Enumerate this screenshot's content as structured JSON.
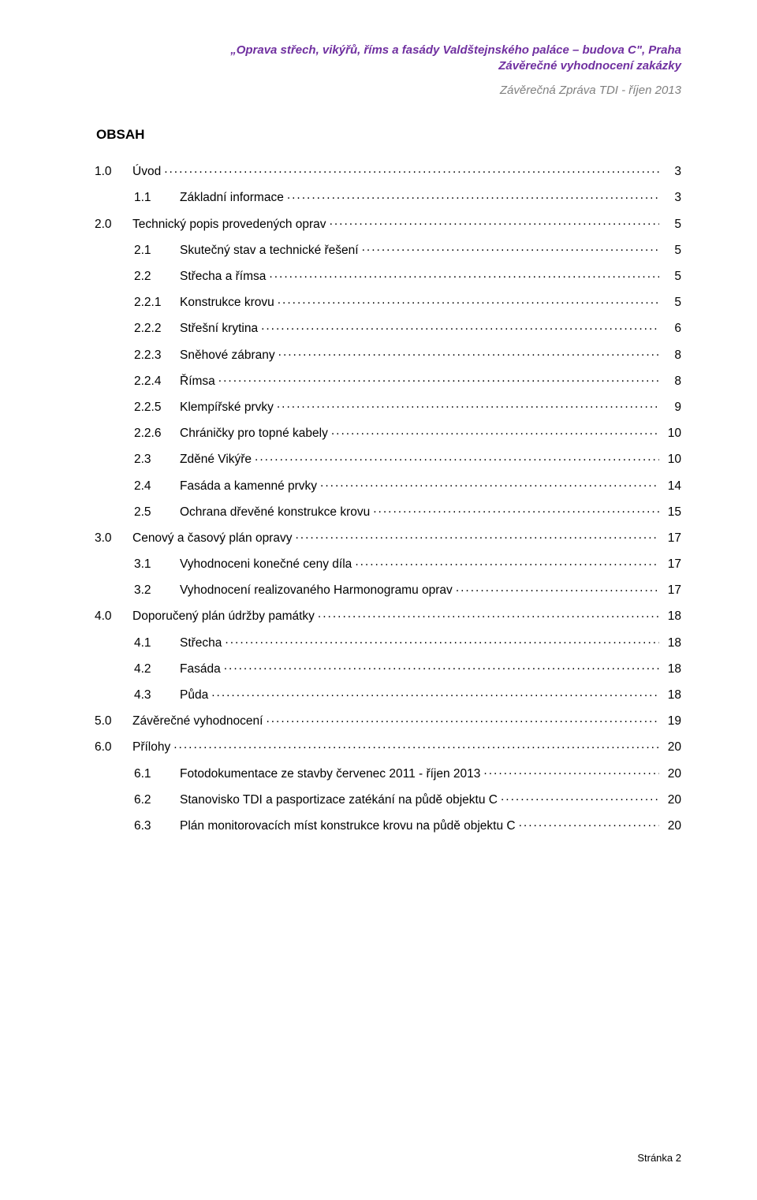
{
  "header": {
    "line1_italic_bold": "„Oprava střech, vikýřů, říms a fasády Valdštejnského paláce – budova C\", Praha",
    "line2_italic_bold": "Závěrečné vyhodnocení zakázky",
    "line3_gray_italic": "Závěrečná Zpráva TDI - říjen 2013"
  },
  "colors": {
    "purple": "#7030a0",
    "gray": "#808080",
    "text": "#000000",
    "background": "#ffffff"
  },
  "obsah_title": "OBSAH",
  "toc": [
    {
      "level": 1,
      "num": "1.0",
      "label": "Úvod",
      "page": "3"
    },
    {
      "level": 2,
      "num": "1.1",
      "label": "Základní informace",
      "page": "3"
    },
    {
      "level": 1,
      "num": "2.0",
      "label": "Technický popis provedených oprav",
      "page": "5"
    },
    {
      "level": 2,
      "num": "2.1",
      "label": "Skutečný stav a technické řešení",
      "page": "5"
    },
    {
      "level": 2,
      "num": "2.2",
      "label": "Střecha a římsa",
      "page": "5"
    },
    {
      "level": 2,
      "num": "2.2.1",
      "label": "Konstrukce krovu",
      "page": "5"
    },
    {
      "level": 2,
      "num": "2.2.2",
      "label": "Střešní krytina",
      "page": "6"
    },
    {
      "level": 2,
      "num": "2.2.3",
      "label": "Sněhové zábrany",
      "page": "8"
    },
    {
      "level": 2,
      "num": "2.2.4",
      "label": "Římsa",
      "page": "8"
    },
    {
      "level": 2,
      "num": "2.2.5",
      "label": "Klempířské prvky",
      "page": "9"
    },
    {
      "level": 2,
      "num": "2.2.6",
      "label": "Chráničky pro topné kabely",
      "page": "10"
    },
    {
      "level": 2,
      "num": "2.3",
      "label": "Zděné Vikýře",
      "page": "10"
    },
    {
      "level": 2,
      "num": "2.4",
      "label": "Fasáda a kamenné prvky",
      "page": "14"
    },
    {
      "level": 2,
      "num": "2.5",
      "label": "Ochrana dřevěné konstrukce krovu",
      "page": "15"
    },
    {
      "level": 1,
      "num": "3.0",
      "label": "Cenový a časový plán opravy",
      "page": "17"
    },
    {
      "level": 2,
      "num": "3.1",
      "label": "Vyhodnoceni konečné ceny díla",
      "page": "17"
    },
    {
      "level": 2,
      "num": "3.2",
      "label": "Vyhodnocení realizovaného Harmonogramu oprav",
      "page": "17"
    },
    {
      "level": 1,
      "num": "4.0",
      "label": "Doporučený plán údržby památky",
      "page": "18"
    },
    {
      "level": 2,
      "num": "4.1",
      "label": "Střecha",
      "page": "18"
    },
    {
      "level": 2,
      "num": "4.2",
      "label": "Fasáda",
      "page": "18"
    },
    {
      "level": 2,
      "num": "4.3",
      "label": "Půda",
      "page": "18"
    },
    {
      "level": 1,
      "num": "5.0",
      "label": "Závěrečné vyhodnocení",
      "page": "19"
    },
    {
      "level": 1,
      "num": "6.0",
      "label": "Přílohy",
      "page": "20"
    },
    {
      "level": 2,
      "num": "6.1",
      "label": "Fotodokumentace ze stavby červenec 2011 - říjen 2013",
      "page": "20"
    },
    {
      "level": 2,
      "num": "6.2",
      "label": "Stanovisko TDI a pasportizace zatékání na půdě objektu C",
      "page": "20"
    },
    {
      "level": 2,
      "num": "6.3",
      "label": "Plán monitorovacích míst konstrukce krovu na půdě objektu C",
      "page": "20"
    }
  ],
  "footer": {
    "label": "Stránka",
    "page_number": "2"
  }
}
